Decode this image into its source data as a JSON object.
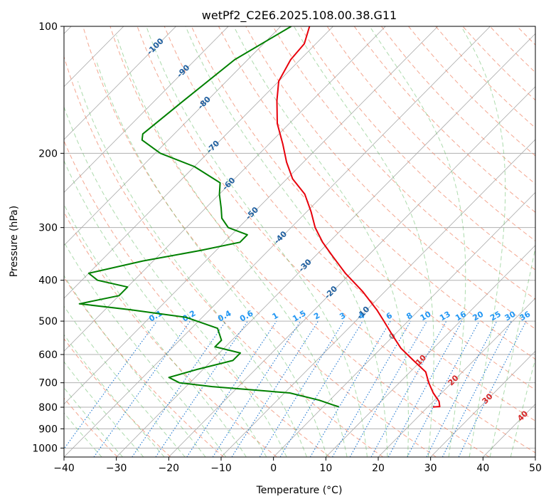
{
  "chart_data": {
    "type": "line",
    "subtype": "skew-t log-p thermodynamic diagram",
    "title": "wetPf2_C2E6.2025.108.00.38.G11",
    "xlabel": "Temperature (°C)",
    "ylabel": "Pressure (hPa)",
    "xlim": [
      -40,
      50
    ],
    "ylim": [
      1050,
      100
    ],
    "y_scale": "log",
    "x_ticks": [
      "−40",
      "−30",
      "−20",
      "−10",
      "0",
      "10",
      "20",
      "30",
      "40",
      "50"
    ],
    "y_ticks": [
      "100",
      "200",
      "300",
      "400",
      "500",
      "600",
      "700",
      "800",
      "900",
      "1000"
    ],
    "grid": true,
    "colors": {
      "temperature": "#e8000b",
      "dewpoint": "#008000",
      "isotherm": "#999999",
      "dry_adiabat": "#f08a6c",
      "moist_adiabat": "#5cb85c",
      "mixing_ratio": "#1f77d0",
      "dry_adiabat_label": "#d62728",
      "moist_adiabat_label": "#1f5f9f",
      "mixing_ratio_label": "#2196f3"
    },
    "series": [
      {
        "role": "temperature",
        "points": [
          {
            "p": 100,
            "t": -74.5
          },
          {
            "p": 110,
            "t": -72.2
          },
          {
            "p": 120,
            "t": -71.8
          },
          {
            "p": 135,
            "t": -70.0
          },
          {
            "p": 150,
            "t": -66.7
          },
          {
            "p": 170,
            "t": -62.3
          },
          {
            "p": 190,
            "t": -57.4
          },
          {
            "p": 210,
            "t": -53.2
          },
          {
            "p": 230,
            "t": -48.9
          },
          {
            "p": 250,
            "t": -43.7
          },
          {
            "p": 275,
            "t": -39.2
          },
          {
            "p": 300,
            "t": -35.4
          },
          {
            "p": 325,
            "t": -31.2
          },
          {
            "p": 350,
            "t": -26.8
          },
          {
            "p": 385,
            "t": -21.0
          },
          {
            "p": 425,
            "t": -14.3
          },
          {
            "p": 470,
            "t": -8.1
          },
          {
            "p": 500,
            "t": -4.6
          },
          {
            "p": 540,
            "t": -0.3
          },
          {
            "p": 580,
            "t": 3.8
          },
          {
            "p": 620,
            "t": 8.5
          },
          {
            "p": 660,
            "t": 13.0
          },
          {
            "p": 700,
            "t": 15.6
          },
          {
            "p": 740,
            "t": 18.4
          },
          {
            "p": 775,
            "t": 21.1
          },
          {
            "p": 797,
            "t": 22.2
          },
          {
            "p": 799,
            "t": 21.0
          }
        ]
      },
      {
        "role": "dewpoint",
        "points": [
          {
            "p": 100,
            "t": -78.0
          },
          {
            "p": 120,
            "t": -82.5
          },
          {
            "p": 150,
            "t": -84.5
          },
          {
            "p": 180,
            "t": -86.0
          },
          {
            "p": 186,
            "t": -85.0
          },
          {
            "p": 200,
            "t": -79.0
          },
          {
            "p": 215,
            "t": -70.0
          },
          {
            "p": 235,
            "t": -62.0
          },
          {
            "p": 250,
            "t": -60.0
          },
          {
            "p": 270,
            "t": -57.0
          },
          {
            "p": 285,
            "t": -55.0
          },
          {
            "p": 300,
            "t": -52.0
          },
          {
            "p": 312,
            "t": -47.0
          },
          {
            "p": 325,
            "t": -47.0
          },
          {
            "p": 340,
            "t": -53.0
          },
          {
            "p": 360,
            "t": -62.0
          },
          {
            "p": 385,
            "t": -70.0
          },
          {
            "p": 400,
            "t": -67.0
          },
          {
            "p": 415,
            "t": -60.0
          },
          {
            "p": 435,
            "t": -60.0
          },
          {
            "p": 455,
            "t": -66.0
          },
          {
            "p": 470,
            "t": -55.0
          },
          {
            "p": 490,
            "t": -43.0
          },
          {
            "p": 520,
            "t": -35.0
          },
          {
            "p": 555,
            "t": -32.0
          },
          {
            "p": 575,
            "t": -32.0
          },
          {
            "p": 595,
            "t": -26.0
          },
          {
            "p": 620,
            "t": -26.0
          },
          {
            "p": 650,
            "t": -31.0
          },
          {
            "p": 680,
            "t": -35.0
          },
          {
            "p": 700,
            "t": -32.0
          },
          {
            "p": 715,
            "t": -25.0
          },
          {
            "p": 740,
            "t": -9.0
          },
          {
            "p": 770,
            "t": -2.0
          },
          {
            "p": 790,
            "t": 1.5
          },
          {
            "p": 798,
            "t": 3.0
          }
        ]
      }
    ],
    "isotherm_labels": [
      "-100",
      "-90",
      "-80",
      "-70",
      "-60",
      "-50",
      "-40",
      "-30",
      "-20",
      "-10",
      "0",
      "10",
      "20",
      "30",
      "40"
    ],
    "mixing_ratio_labels": [
      "0.1",
      "0.2",
      "0.4",
      "0.6",
      "1",
      "1.5",
      "2",
      "3",
      "4",
      "6",
      "8",
      "10",
      "13",
      "16",
      "20",
      "25",
      "30",
      "36"
    ]
  }
}
